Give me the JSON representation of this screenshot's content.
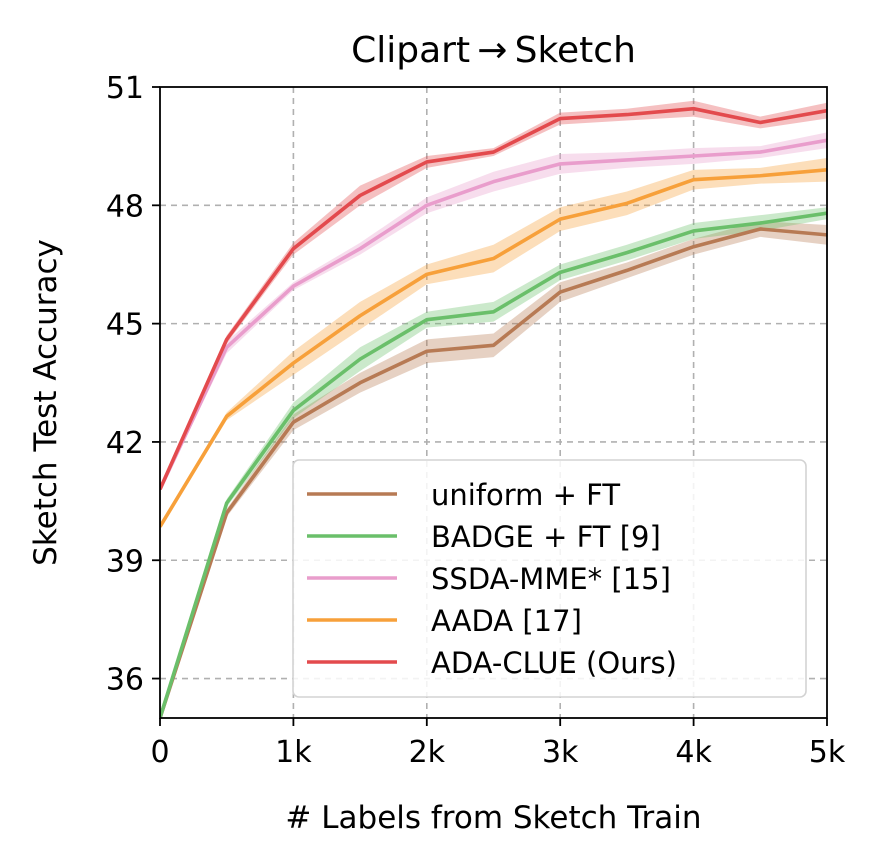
{
  "chart_data": {
    "type": "line",
    "title": "Clipart → Sketch",
    "xlabel": "# Labels from Sketch Train",
    "ylabel": "Sketch Test Accuracy",
    "xlim": [
      0,
      5000
    ],
    "ylim": [
      35,
      51
    ],
    "xticks": [
      0,
      1000,
      2000,
      3000,
      4000,
      5000
    ],
    "xtick_labels": [
      "0",
      "1k",
      "2k",
      "3k",
      "4k",
      "5k"
    ],
    "yticks": [
      36,
      39,
      42,
      45,
      48,
      51
    ],
    "ytick_labels": [
      "36",
      "39",
      "42",
      "45",
      "48",
      "51"
    ],
    "grid": true,
    "legend_position": "lower-right",
    "x": [
      0,
      500,
      1000,
      1500,
      2000,
      2500,
      3000,
      3500,
      4000,
      4500,
      5000
    ],
    "series": [
      {
        "name": "uniform + FT",
        "color": "#b77a54",
        "values": [
          35.0,
          40.2,
          42.5,
          43.5,
          44.3,
          44.45,
          45.8,
          46.35,
          46.95,
          47.4,
          47.25
        ],
        "band": [
          0.05,
          0.1,
          0.2,
          0.25,
          0.3,
          0.3,
          0.25,
          0.2,
          0.2,
          0.2,
          0.25
        ]
      },
      {
        "name": "BADGE + FT [9]",
        "color": "#6abf6a",
        "values": [
          35.0,
          40.45,
          42.8,
          44.1,
          45.1,
          45.3,
          46.3,
          46.8,
          47.35,
          47.55,
          47.8
        ],
        "band": [
          0.05,
          0.1,
          0.2,
          0.3,
          0.2,
          0.25,
          0.2,
          0.2,
          0.2,
          0.2,
          0.15
        ]
      },
      {
        "name": "SSDA-MME* [15]",
        "color": "#e99dcc",
        "values": [
          40.8,
          44.4,
          45.95,
          46.9,
          48.0,
          48.6,
          49.05,
          49.15,
          49.25,
          49.35,
          49.65
        ],
        "band": [
          0.05,
          0.15,
          0.1,
          0.15,
          0.2,
          0.25,
          0.25,
          0.2,
          0.2,
          0.15,
          0.2
        ]
      },
      {
        "name": "AADA [17]",
        "color": "#f7a03a",
        "values": [
          39.85,
          42.65,
          44.0,
          45.2,
          46.25,
          46.65,
          47.65,
          48.05,
          48.65,
          48.75,
          48.9
        ],
        "band": [
          0.05,
          0.1,
          0.3,
          0.35,
          0.25,
          0.35,
          0.3,
          0.3,
          0.25,
          0.2,
          0.3
        ]
      },
      {
        "name": "ADA-CLUE (Ours)",
        "color": "#e34a4d",
        "values": [
          40.8,
          44.6,
          46.9,
          48.25,
          49.1,
          49.35,
          50.2,
          50.3,
          50.45,
          50.1,
          50.4
        ],
        "band": [
          0.05,
          0.1,
          0.15,
          0.25,
          0.15,
          0.1,
          0.15,
          0.15,
          0.2,
          0.15,
          0.2
        ]
      }
    ]
  }
}
